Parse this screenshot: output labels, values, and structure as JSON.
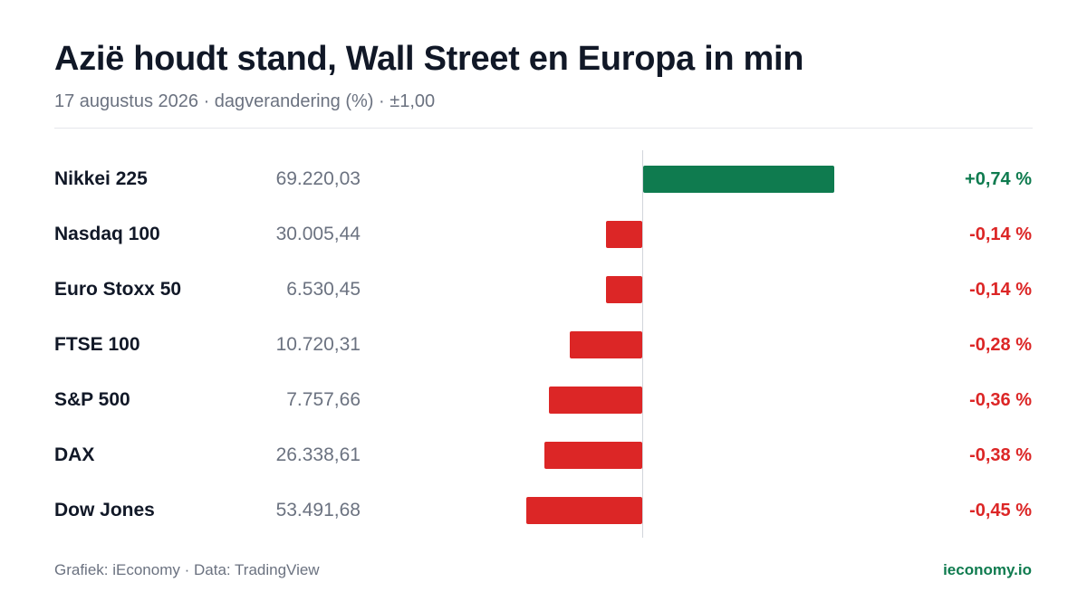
{
  "header": {
    "title": "Azië houdt stand, Wall Street en Europa in min",
    "subtitle": "17 augustus 2026 · dagverandering (%) · ±1,00"
  },
  "footer": {
    "source": "Grafiek: iEconomy · Data: TradingView",
    "brand": "ieconomy.io"
  },
  "colors": {
    "positive": "#0f7b4f",
    "negative": "#dc2626",
    "brand": "#0f7b4f"
  },
  "chart_data": {
    "type": "bar",
    "orientation": "horizontal",
    "xlim": [
      -1,
      1
    ],
    "categories": [
      "Nikkei 225",
      "Nasdaq 100",
      "Euro Stoxx 50",
      "FTSE 100",
      "S&P 500",
      "DAX",
      "Dow Jones"
    ],
    "index_levels": [
      "69.220,03",
      "30.005,44",
      "6.530,45",
      "10.720,31",
      "7.757,66",
      "26.338,61",
      "53.491,68"
    ],
    "values": [
      0.74,
      -0.14,
      -0.14,
      -0.28,
      -0.36,
      -0.38,
      -0.45
    ],
    "value_labels": [
      "+0,74 %",
      "-0,14 %",
      "-0,14 %",
      "-0,28 %",
      "-0,36 %",
      "-0,38 %",
      "-0,45 %"
    ]
  }
}
